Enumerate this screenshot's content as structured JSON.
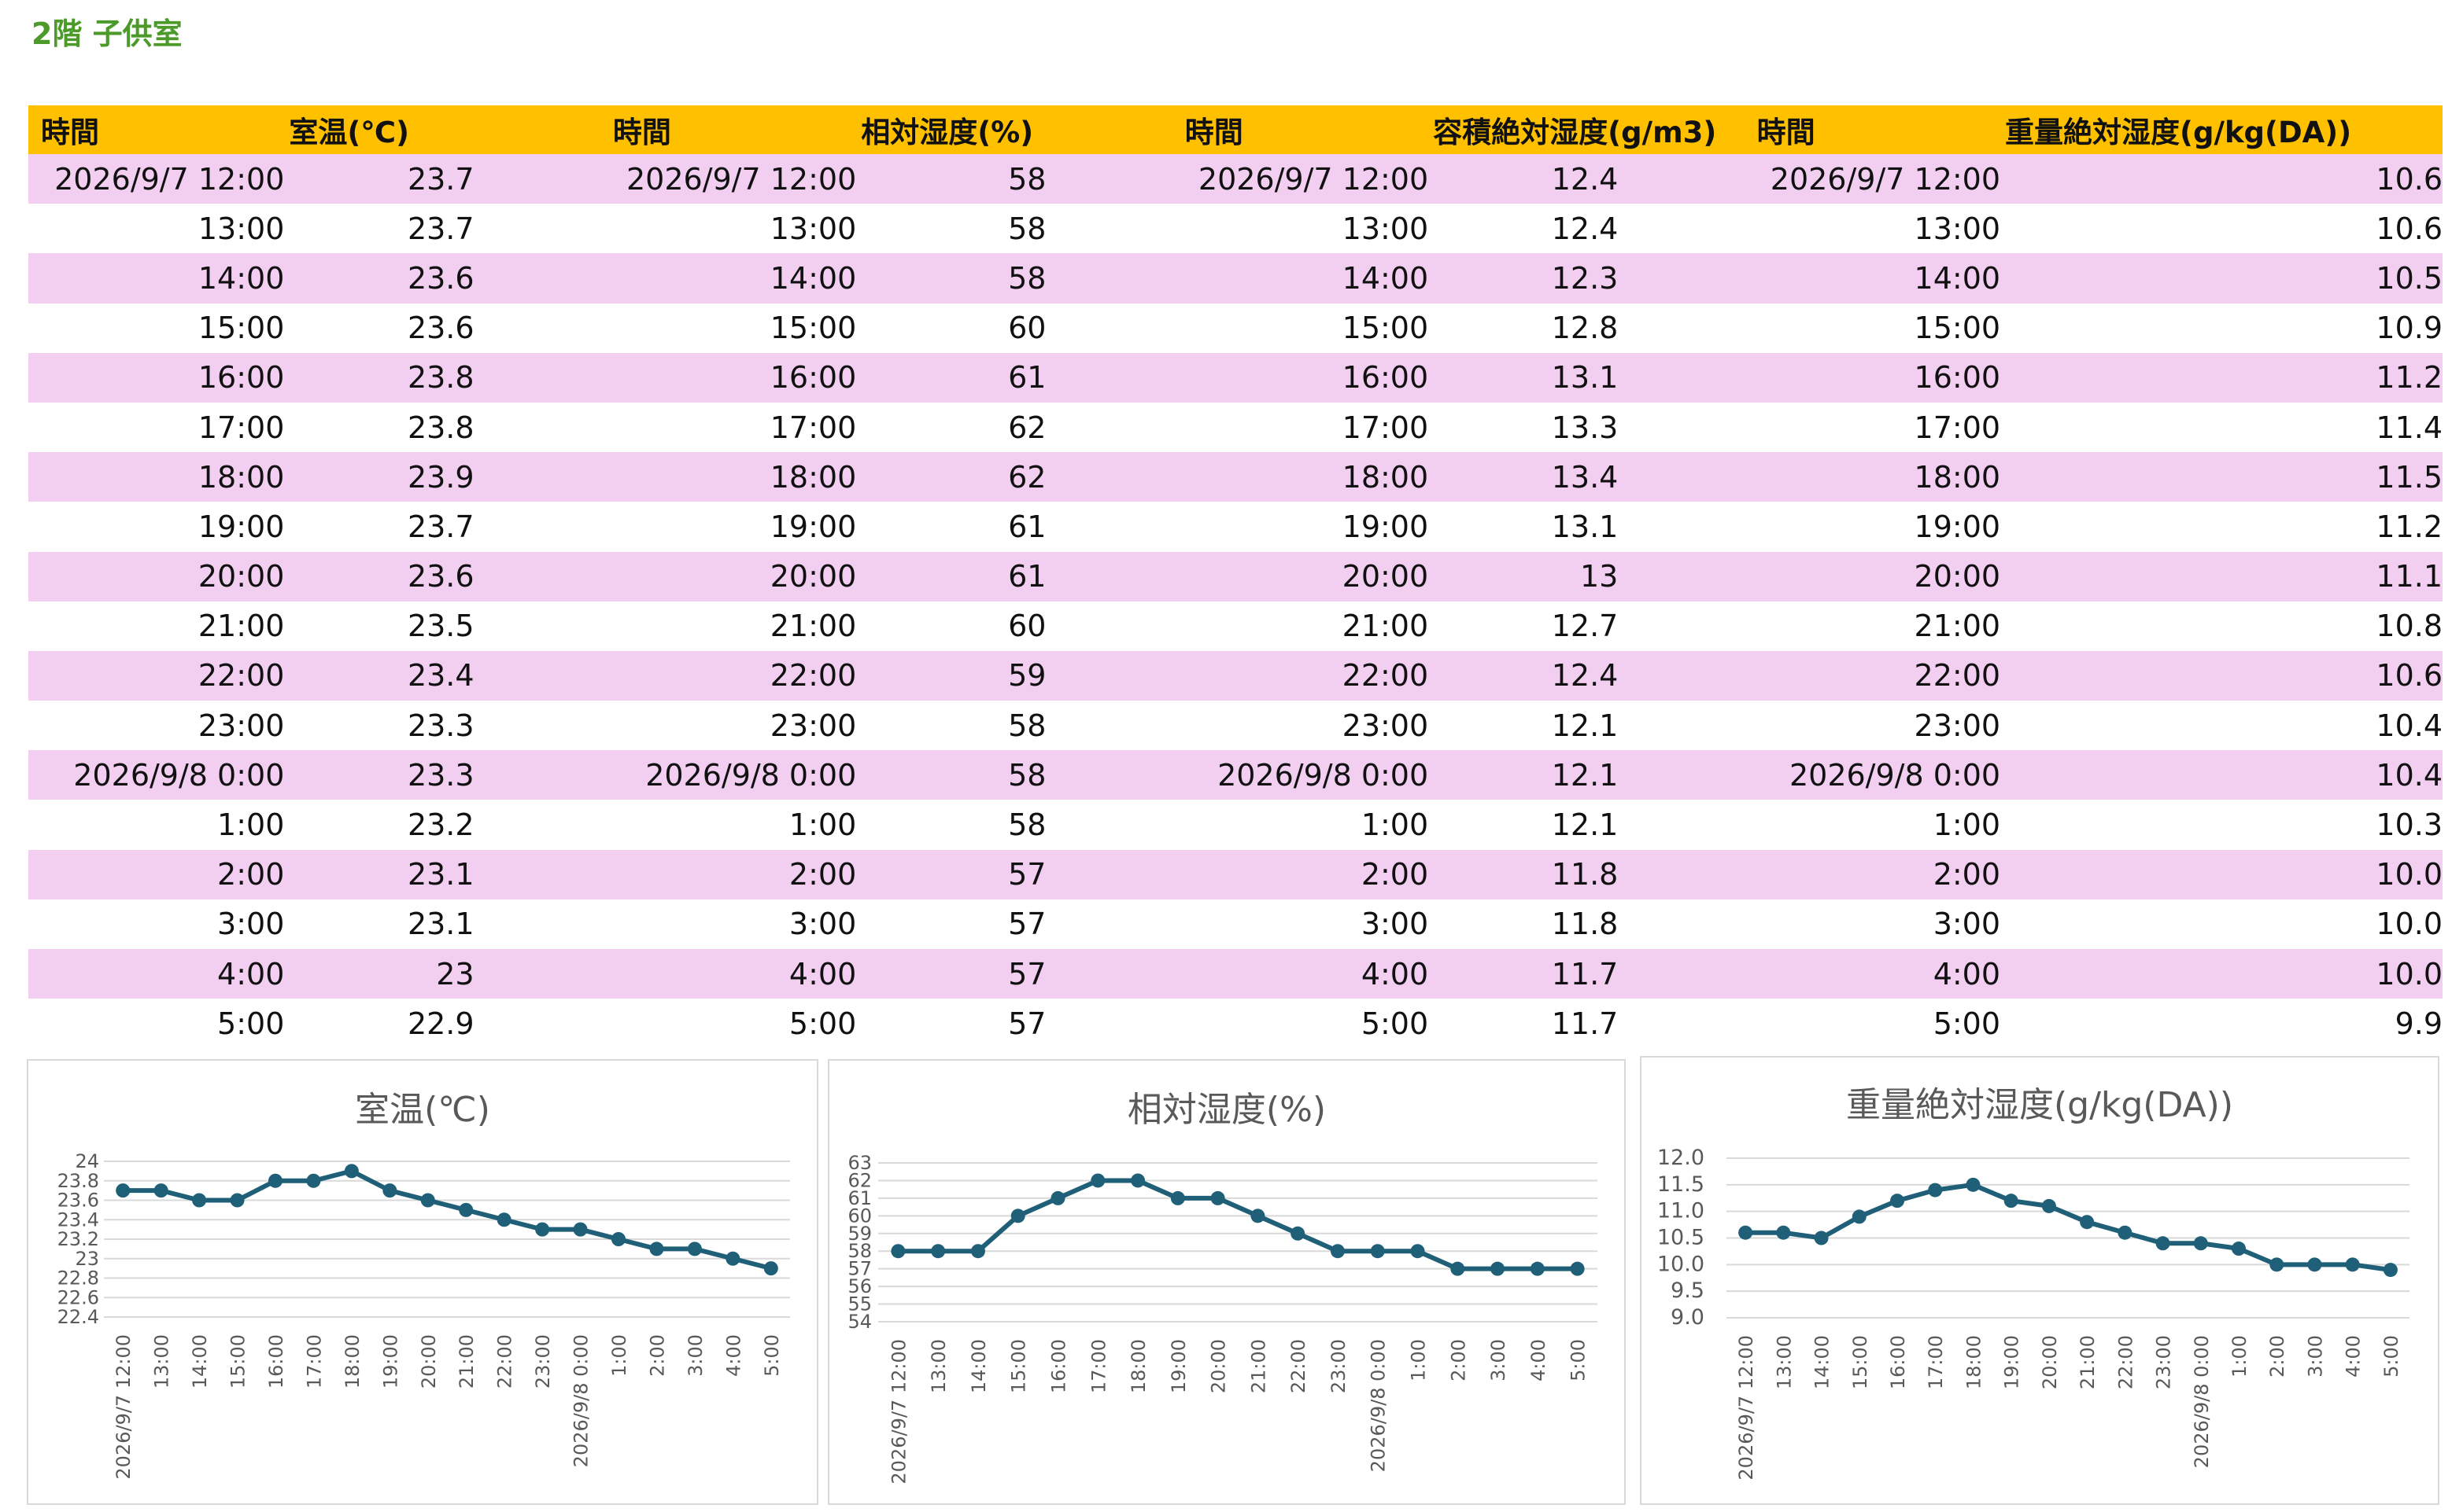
{
  "page_title": "2階 子供室",
  "table": {
    "headers": [
      "時間",
      "室温(℃)",
      "時間",
      "相対湿度(%)",
      "時間",
      "容積絶対湿度(g/m3)",
      "時間",
      "重量絶対湿度(g/kg(DA))"
    ],
    "times": [
      "2026/9/7 12:00",
      "13:00",
      "14:00",
      "15:00",
      "16:00",
      "17:00",
      "18:00",
      "19:00",
      "20:00",
      "21:00",
      "22:00",
      "23:00",
      "2026/9/8 0:00",
      "1:00",
      "2:00",
      "3:00",
      "4:00",
      "5:00"
    ],
    "temperature": [
      "23.7",
      "23.7",
      "23.6",
      "23.6",
      "23.8",
      "23.8",
      "23.9",
      "23.7",
      "23.6",
      "23.5",
      "23.4",
      "23.3",
      "23.3",
      "23.2",
      "23.1",
      "23.1",
      "23",
      "22.9"
    ],
    "relative_humidity": [
      "58",
      "58",
      "58",
      "60",
      "61",
      "62",
      "62",
      "61",
      "61",
      "60",
      "59",
      "58",
      "58",
      "58",
      "57",
      "57",
      "57",
      "57"
    ],
    "volumetric_humidity": [
      "12.4",
      "12.4",
      "12.3",
      "12.8",
      "13.1",
      "13.3",
      "13.4",
      "13.1",
      "13",
      "12.7",
      "12.4",
      "12.1",
      "12.1",
      "12.1",
      "11.8",
      "11.8",
      "11.7",
      "11.7"
    ],
    "mass_humidity": [
      "10.6",
      "10.6",
      "10.5",
      "10.9",
      "11.2",
      "11.4",
      "11.5",
      "11.2",
      "11.1",
      "10.8",
      "10.6",
      "10.4",
      "10.4",
      "10.3",
      "10.0",
      "10.0",
      "10.0",
      "9.9"
    ]
  },
  "colors": {
    "header_bg": "#ffc000",
    "row_stripe": "#f2cef0",
    "series_line": "#1f5f78",
    "title_green": "#4c9a2a",
    "grid": "#d9d9d9"
  },
  "chart_data": [
    {
      "type": "line",
      "title": "室温(℃)",
      "categories": [
        "2026/9/7 12:00",
        "13:00",
        "14:00",
        "15:00",
        "16:00",
        "17:00",
        "18:00",
        "19:00",
        "20:00",
        "21:00",
        "22:00",
        "23:00",
        "2026/9/8 0:00",
        "1:00",
        "2:00",
        "3:00",
        "4:00",
        "5:00"
      ],
      "values": [
        23.7,
        23.7,
        23.6,
        23.6,
        23.8,
        23.8,
        23.9,
        23.7,
        23.6,
        23.5,
        23.4,
        23.3,
        23.3,
        23.2,
        23.1,
        23.1,
        23.0,
        22.9
      ],
      "ylim": [
        22.4,
        24
      ],
      "yticks": [
        "22.4",
        "22.6",
        "22.8",
        "23",
        "23.2",
        "23.4",
        "23.6",
        "23.8",
        "24"
      ],
      "grid": true,
      "legend": "none"
    },
    {
      "type": "line",
      "title": "相対湿度(%)",
      "categories": [
        "2026/9/7 12:00",
        "13:00",
        "14:00",
        "15:00",
        "16:00",
        "17:00",
        "18:00",
        "19:00",
        "20:00",
        "21:00",
        "22:00",
        "23:00",
        "2026/9/8 0:00",
        "1:00",
        "2:00",
        "3:00",
        "4:00",
        "5:00"
      ],
      "values": [
        58,
        58,
        58,
        60,
        61,
        62,
        62,
        61,
        61,
        60,
        59,
        58,
        58,
        58,
        57,
        57,
        57,
        57
      ],
      "ylim": [
        54,
        63
      ],
      "yticks": [
        "54",
        "55",
        "56",
        "57",
        "58",
        "59",
        "60",
        "61",
        "62",
        "63"
      ],
      "grid": true,
      "legend": "none"
    },
    {
      "type": "line",
      "title": "重量絶対湿度(g/kg(DA))",
      "categories": [
        "2026/9/7 12:00",
        "13:00",
        "14:00",
        "15:00",
        "16:00",
        "17:00",
        "18:00",
        "19:00",
        "20:00",
        "21:00",
        "22:00",
        "23:00",
        "2026/9/8 0:00",
        "1:00",
        "2:00",
        "3:00",
        "4:00",
        "5:00"
      ],
      "values": [
        10.6,
        10.6,
        10.5,
        10.9,
        11.2,
        11.4,
        11.5,
        11.2,
        11.1,
        10.8,
        10.6,
        10.4,
        10.4,
        10.3,
        10.0,
        10.0,
        10.0,
        9.9
      ],
      "ylim": [
        9.0,
        12.0
      ],
      "yticks": [
        "9.0",
        "9.5",
        "10.0",
        "10.5",
        "11.0",
        "11.5",
        "12.0"
      ],
      "grid": true,
      "legend": "none"
    }
  ]
}
